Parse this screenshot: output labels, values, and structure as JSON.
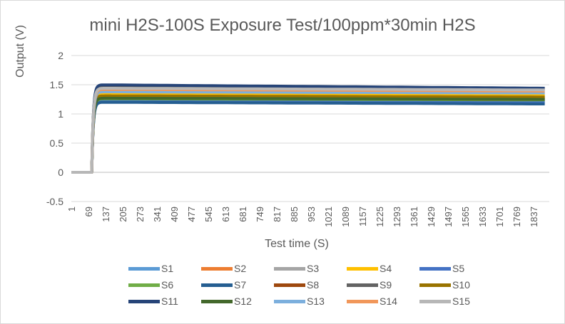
{
  "chart_data": {
    "type": "line",
    "title": "mini H2S-100S Exposure Test/100ppm*30min  H2S",
    "xlabel": "Test time (S)",
    "ylabel": "Output (V)",
    "ylim": [
      -0.5,
      2
    ],
    "yticks": [
      "2",
      "1.5",
      "1",
      "0.5",
      "0",
      "-0.5"
    ],
    "xlim": [
      1,
      1900
    ],
    "xticks": [
      "1",
      "69",
      "137",
      "205",
      "273",
      "341",
      "409",
      "477",
      "545",
      "613",
      "681",
      "749",
      "817",
      "885",
      "953",
      "1021",
      "1089",
      "1157",
      "1225",
      "1293",
      "1361",
      "1429",
      "1497",
      "1565",
      "1633",
      "1701",
      "1769",
      "1837"
    ],
    "grid": true,
    "legend_position": "bottom",
    "exposure_start": 82,
    "series": [
      {
        "name": "S1",
        "color": "#5b9bd5",
        "plateau_start": 1.24,
        "plateau_end": 1.22
      },
      {
        "name": "S2",
        "color": "#ed7d31",
        "plateau_start": 1.3,
        "plateau_end": 1.28
      },
      {
        "name": "S3",
        "color": "#a5a5a5",
        "plateau_start": 1.36,
        "plateau_end": 1.34
      },
      {
        "name": "S4",
        "color": "#ffc000",
        "plateau_start": 1.33,
        "plateau_end": 1.31
      },
      {
        "name": "S5",
        "color": "#4472c4",
        "plateau_start": 1.22,
        "plateau_end": 1.2
      },
      {
        "name": "S6",
        "color": "#70ad47",
        "plateau_start": 1.26,
        "plateau_end": 1.24
      },
      {
        "name": "S7",
        "color": "#255e91",
        "plateau_start": 1.2,
        "plateau_end": 1.17
      },
      {
        "name": "S8",
        "color": "#9e480e",
        "plateau_start": 1.28,
        "plateau_end": 1.25
      },
      {
        "name": "S9",
        "color": "#636363",
        "plateau_start": 1.46,
        "plateau_end": 1.43
      },
      {
        "name": "S10",
        "color": "#997300",
        "plateau_start": 1.31,
        "plateau_end": 1.29
      },
      {
        "name": "S11",
        "color": "#264478",
        "plateau_start": 1.5,
        "plateau_end": 1.44
      },
      {
        "name": "S12",
        "color": "#43682b",
        "plateau_start": 1.27,
        "plateau_end": 1.25
      },
      {
        "name": "S13",
        "color": "#7cafdd",
        "plateau_start": 1.38,
        "plateau_end": 1.36
      },
      {
        "name": "S14",
        "color": "#f1975a",
        "plateau_start": 1.42,
        "plateau_end": 1.39
      },
      {
        "name": "S15",
        "color": "#b7b7b7",
        "plateau_start": 1.44,
        "plateau_end": 1.41
      }
    ]
  }
}
